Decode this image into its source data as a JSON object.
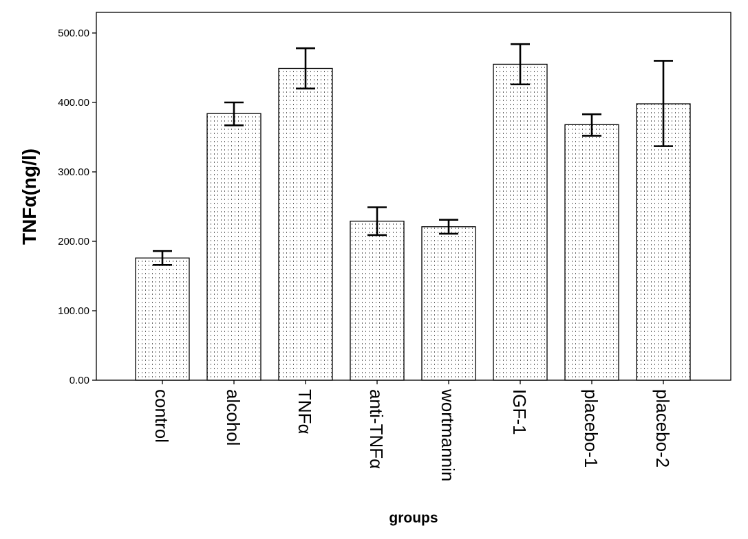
{
  "chart_data": {
    "type": "bar",
    "title": "",
    "xlabel": "groups",
    "ylabel": "TNFα(ng/l)",
    "categories": [
      "control",
      "alcohol",
      "TNFα",
      "anti-TNFα",
      "wortmannin",
      "IGF-1",
      "placebo-1",
      "placebo-2"
    ],
    "values": [
      176,
      384,
      449,
      229,
      221,
      455,
      368,
      398
    ],
    "error_low": [
      166,
      367,
      420,
      209,
      211,
      426,
      352,
      337
    ],
    "error_high": [
      186,
      400,
      478,
      249,
      231,
      484,
      383,
      460
    ],
    "ylim": [
      0,
      500
    ],
    "yticks": [
      0,
      100,
      200,
      300,
      400,
      500
    ],
    "ytick_labels": [
      "0.00",
      "100.00",
      "200.00",
      "300.00",
      "400.00",
      "500.00"
    ],
    "bar_fill": "dotted pattern",
    "grid": false,
    "legend": "none"
  }
}
